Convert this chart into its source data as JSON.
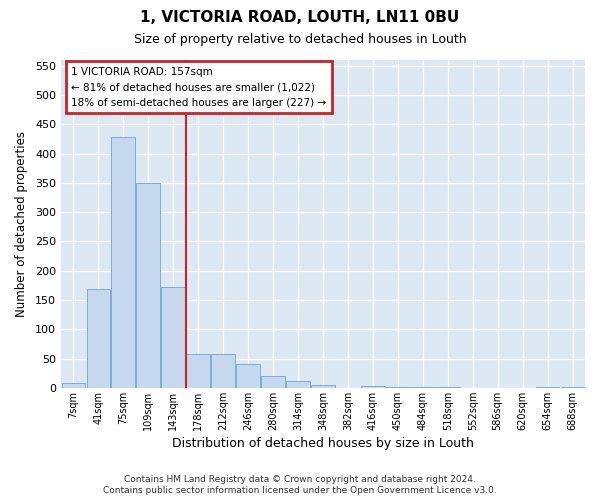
{
  "title": "1, VICTORIA ROAD, LOUTH, LN11 0BU",
  "subtitle": "Size of property relative to detached houses in Louth",
  "xlabel": "Distribution of detached houses by size in Louth",
  "ylabel": "Number of detached properties",
  "categories": [
    "7sqm",
    "41sqm",
    "75sqm",
    "109sqm",
    "143sqm",
    "178sqm",
    "212sqm",
    "246sqm",
    "280sqm",
    "314sqm",
    "348sqm",
    "382sqm",
    "416sqm",
    "450sqm",
    "484sqm",
    "518sqm",
    "552sqm",
    "586sqm",
    "620sqm",
    "654sqm",
    "688sqm"
  ],
  "values": [
    8,
    168,
    428,
    350,
    172,
    57,
    57,
    40,
    20,
    11,
    4,
    0,
    3,
    1,
    1,
    1,
    0,
    0,
    0,
    2,
    2
  ],
  "bar_color": "#c5d8ed",
  "bar_edgecolor": "#7aaed4",
  "annotation_line1": "1 VICTORIA ROAD: 157sqm",
  "annotation_line2": "← 81% of detached houses are smaller (1,022)",
  "annotation_line3": "18% of semi-detached houses are larger (227) →",
  "redline_color": "#cc2222",
  "box_edgecolor": "#cc2222",
  "ylim": [
    0,
    560
  ],
  "yticks": [
    0,
    50,
    100,
    150,
    200,
    250,
    300,
    350,
    400,
    450,
    500,
    550
  ],
  "plot_bgcolor": "#dde8f5",
  "fig_bgcolor": "#ffffff",
  "grid_color": "#ffffff",
  "footer1": "Contains HM Land Registry data © Crown copyright and database right 2024.",
  "footer2": "Contains public sector information licensed under the Open Government Licence v3.0."
}
